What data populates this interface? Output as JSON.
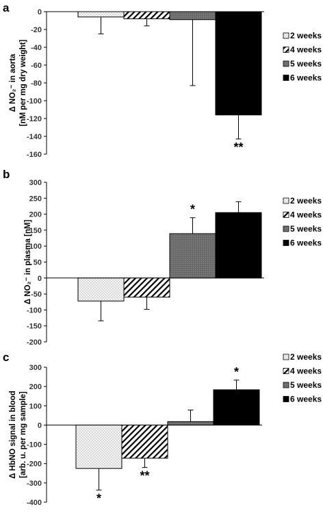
{
  "chart_data": [
    {
      "type": "bar",
      "panel": "a",
      "ylabel_lines": [
        "Δ NO₂⁻ in aorta",
        "[nM per mg dry weight]"
      ],
      "ylim": [
        -160,
        0
      ],
      "yticks": [
        0,
        -20,
        -40,
        -60,
        -80,
        -100,
        -120,
        -140,
        -160
      ],
      "categories": [
        "2 weeks",
        "4 weeks",
        "5 weeks",
        "6 weeks"
      ],
      "values": [
        -6,
        -8,
        -9,
        -116
      ],
      "errors": [
        19,
        8,
        74,
        27
      ],
      "significance": [
        "",
        "",
        "",
        "**"
      ],
      "grid": false,
      "legend": {
        "position": "right",
        "entries": [
          "2 weeks",
          "4 weeks",
          "5 weeks",
          "6 weeks"
        ]
      }
    },
    {
      "type": "bar",
      "panel": "b",
      "ylabel_lines": [
        "Δ NO₂⁻ in plasma [nM]"
      ],
      "ylim": [
        -200,
        300
      ],
      "yticks": [
        300,
        250,
        200,
        150,
        100,
        50,
        0,
        -50,
        -100,
        -150,
        -200
      ],
      "categories": [
        "2 weeks",
        "4 weeks",
        "5 weeks",
        "6 weeks"
      ],
      "values": [
        -72,
        -60,
        139,
        205
      ],
      "errors": [
        62,
        38,
        50,
        34
      ],
      "significance": [
        "",
        "",
        "*",
        ""
      ],
      "grid": false,
      "legend": {
        "position": "right",
        "entries": [
          "2 weeks",
          "4 weeks",
          "5 weeks",
          "6 weeks"
        ]
      }
    },
    {
      "type": "bar",
      "panel": "c",
      "ylabel_lines": [
        "Δ HbNO signal in blood",
        "[arb. u. per mg sample]"
      ],
      "ylim": [
        -400,
        300
      ],
      "yticks": [
        300,
        200,
        100,
        0,
        -100,
        -200,
        -300,
        -400
      ],
      "categories": [
        "2 weeks",
        "4 weeks",
        "5 weeks",
        "6 weeks"
      ],
      "values": [
        -225,
        -172,
        18,
        183
      ],
      "errors": [
        112,
        48,
        60,
        50
      ],
      "significance": [
        "*",
        "**",
        "",
        "*"
      ],
      "grid": false,
      "legend": {
        "position": "right",
        "entries": [
          "2 weeks",
          "4 weeks",
          "5 weeks",
          "6 weeks"
        ]
      }
    }
  ],
  "series_style": {
    "2 weeks": {
      "pattern": "dots",
      "color": "#f4f4f4"
    },
    "4 weeks": {
      "pattern": "diagonal-stripes",
      "color": "#ffffff"
    },
    "5 weeks": {
      "pattern": "fine-grey",
      "color": "#6e6e6e"
    },
    "6 weeks": {
      "pattern": "solid",
      "color": "#000000"
    }
  }
}
